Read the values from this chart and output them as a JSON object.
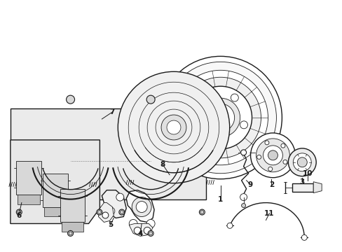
{
  "bg_color": "#ffffff",
  "line_color": "#1a1a1a",
  "gray_fill": "#e8e8e8",
  "light_fill": "#f4f4f4",
  "figsize": [
    4.89,
    3.6
  ],
  "dpi": 100,
  "xlim": [
    0,
    489
  ],
  "ylim": [
    0,
    360
  ]
}
